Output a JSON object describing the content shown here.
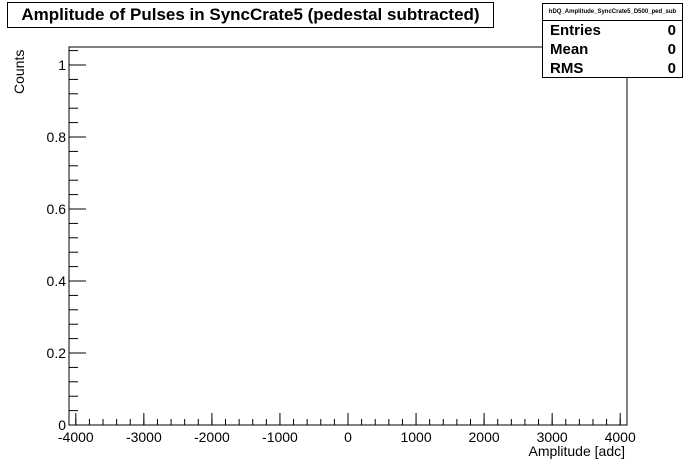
{
  "title": "Amplitude of Pulses in SyncCrate5 (pedestal subtracted)",
  "stats": {
    "name": "hDQ_Amplitude_SyncCrate5_D500_ped_sub",
    "rows": [
      {
        "label": "Entries",
        "value": "0"
      },
      {
        "label": "Mean",
        "value": "0"
      },
      {
        "label": "RMS",
        "value": "0"
      }
    ]
  },
  "chart_data": {
    "type": "bar",
    "title": "Amplitude of Pulses in SyncCrate5 (pedestal subtracted)",
    "xlabel": "Amplitude [adc]",
    "ylabel": "Counts",
    "xlim": [
      -4100,
      4100
    ],
    "ylim": [
      0,
      1.05
    ],
    "x_ticks": [
      -4000,
      -3000,
      -2000,
      -1000,
      0,
      1000,
      2000,
      3000,
      4000
    ],
    "x_tick_labels": [
      "-4000",
      "-3000",
      "-2000",
      "-1000",
      "0",
      "1000",
      "2000",
      "3000",
      "4000"
    ],
    "y_ticks": [
      0,
      0.2,
      0.4,
      0.6,
      0.8,
      1
    ],
    "y_tick_labels": [
      "0",
      "0.2",
      "0.4",
      "0.6",
      "0.8",
      "1"
    ],
    "values": [],
    "grid": false,
    "legend": "none"
  }
}
